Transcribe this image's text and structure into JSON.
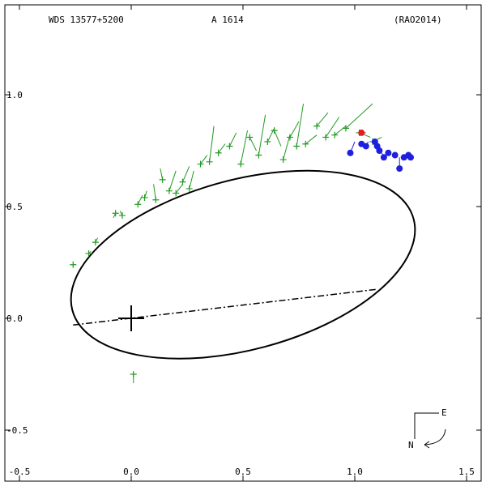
{
  "header": {
    "left": "WDS 13577+5200",
    "center": "A  1614",
    "right": "(RAO2014)"
  },
  "compass": {
    "east": "E",
    "north": "N"
  },
  "chart_data": {
    "type": "scatter",
    "xlim": [
      -0.5,
      1.5
    ],
    "ylim": [
      -0.5,
      1.0
    ],
    "x_ticks": [
      {
        "v": -0.5,
        "label": "-0.5"
      },
      {
        "v": 0.0,
        "label": "0.0"
      },
      {
        "v": 0.5,
        "label": "0.5"
      },
      {
        "v": 1.0,
        "label": "1.0"
      },
      {
        "v": 1.5,
        "label": "1.5"
      }
    ],
    "y_ticks": [
      {
        "v": 1.0,
        "label": "1.0"
      },
      {
        "v": 0.5,
        "label": "0.5"
      },
      {
        "v": 0.0,
        "label": "0.0"
      },
      {
        "v": -0.5,
        "label": "-0.5"
      }
    ],
    "grid": false,
    "orbit_ellipse": {
      "cx": 0.5,
      "cy": 0.24,
      "rx": 0.79,
      "ry": 0.38,
      "rotation_deg": -15
    },
    "node_line": [
      [
        -0.26,
        -0.03
      ],
      [
        1.1,
        0.13
      ]
    ],
    "primary_star": [
      0.0,
      0.0
    ],
    "colors": {
      "orbit": "#000000",
      "visual": "#229922",
      "speckle": "#1f1fe0",
      "latest": "#e02020"
    },
    "series": [
      {
        "marker": "plus",
        "color": "#229922",
        "points": [
          {
            "x": -0.26,
            "y": 0.24,
            "ox": -0.25,
            "oy": 0.24
          },
          {
            "x": -0.19,
            "y": 0.29,
            "ox": -0.18,
            "oy": 0.3
          },
          {
            "x": -0.16,
            "y": 0.34,
            "ox": -0.15,
            "oy": 0.36
          },
          {
            "x": -0.07,
            "y": 0.47,
            "ox": -0.08,
            "oy": 0.45
          },
          {
            "x": -0.04,
            "y": 0.46,
            "ox": -0.05,
            "oy": 0.48
          },
          {
            "x": 0.03,
            "y": 0.51,
            "ox": 0.05,
            "oy": 0.55
          },
          {
            "x": 0.06,
            "y": 0.54,
            "ox": 0.07,
            "oy": 0.57
          },
          {
            "x": 0.11,
            "y": 0.53,
            "ox": 0.1,
            "oy": 0.6
          },
          {
            "x": 0.14,
            "y": 0.62,
            "ox": 0.13,
            "oy": 0.67
          },
          {
            "x": 0.17,
            "y": 0.57,
            "ox": 0.2,
            "oy": 0.66
          },
          {
            "x": 0.2,
            "y": 0.56,
            "ox": 0.23,
            "oy": 0.6
          },
          {
            "x": 0.23,
            "y": 0.61,
            "ox": 0.26,
            "oy": 0.68
          },
          {
            "x": 0.26,
            "y": 0.58,
            "ox": 0.28,
            "oy": 0.66
          },
          {
            "x": 0.31,
            "y": 0.69,
            "ox": 0.34,
            "oy": 0.73
          },
          {
            "x": 0.35,
            "y": 0.7,
            "ox": 0.37,
            "oy": 0.86
          },
          {
            "x": 0.39,
            "y": 0.74,
            "ox": 0.42,
            "oy": 0.78
          },
          {
            "x": 0.44,
            "y": 0.77,
            "ox": 0.47,
            "oy": 0.83
          },
          {
            "x": 0.49,
            "y": 0.69,
            "ox": 0.52,
            "oy": 0.84
          },
          {
            "x": 0.53,
            "y": 0.81,
            "ox": 0.56,
            "oy": 0.75
          },
          {
            "x": 0.57,
            "y": 0.73,
            "ox": 0.6,
            "oy": 0.91
          },
          {
            "x": 0.61,
            "y": 0.79,
            "ox": 0.64,
            "oy": 0.85
          },
          {
            "x": 0.64,
            "y": 0.84,
            "ox": 0.67,
            "oy": 0.77
          },
          {
            "x": 0.68,
            "y": 0.71,
            "ox": 0.71,
            "oy": 0.82
          },
          {
            "x": 0.71,
            "y": 0.81,
            "ox": 0.75,
            "oy": 0.88
          },
          {
            "x": 0.74,
            "y": 0.77,
            "ox": 0.77,
            "oy": 0.96
          },
          {
            "x": 0.78,
            "y": 0.78,
            "ox": 0.83,
            "oy": 0.82
          },
          {
            "x": 0.83,
            "y": 0.86,
            "ox": 0.88,
            "oy": 0.92
          },
          {
            "x": 0.87,
            "y": 0.81,
            "ox": 0.93,
            "oy": 0.9
          },
          {
            "x": 0.91,
            "y": 0.82,
            "ox": 0.96,
            "oy": 0.86
          },
          {
            "x": 0.96,
            "y": 0.85,
            "ox": 1.08,
            "oy": 0.96
          },
          {
            "x": 1.02,
            "y": 0.83,
            "ox": 1.07,
            "oy": 0.81
          },
          {
            "x": 1.08,
            "y": 0.79,
            "ox": 1.12,
            "oy": 0.81
          },
          {
            "x": 0.01,
            "y": -0.25,
            "ox": 0.01,
            "oy": -0.29
          }
        ]
      },
      {
        "marker": "dot",
        "color": "#1f1fe0",
        "points": [
          {
            "x": 0.98,
            "y": 0.74,
            "ox": 1.0,
            "oy": 0.79
          },
          {
            "x": 1.03,
            "y": 0.78,
            "ox": 1.03,
            "oy": 0.78
          },
          {
            "x": 1.05,
            "y": 0.77,
            "ox": 1.06,
            "oy": 0.79
          },
          {
            "x": 1.09,
            "y": 0.79,
            "ox": 1.08,
            "oy": 0.8
          },
          {
            "x": 1.1,
            "y": 0.77,
            "ox": 1.1,
            "oy": 0.77
          },
          {
            "x": 1.11,
            "y": 0.75,
            "ox": 1.12,
            "oy": 0.76
          },
          {
            "x": 1.13,
            "y": 0.72,
            "ox": 1.12,
            "oy": 0.74
          },
          {
            "x": 1.15,
            "y": 0.74,
            "ox": 1.14,
            "oy": 0.75
          },
          {
            "x": 1.18,
            "y": 0.73,
            "ox": 1.18,
            "oy": 0.72
          },
          {
            "x": 1.2,
            "y": 0.67,
            "ox": 1.2,
            "oy": 0.72
          },
          {
            "x": 1.22,
            "y": 0.72,
            "ox": 1.22,
            "oy": 0.71
          },
          {
            "x": 1.24,
            "y": 0.73,
            "ox": 1.24,
            "oy": 0.71
          },
          {
            "x": 1.25,
            "y": 0.72,
            "ox": 1.25,
            "oy": 0.71
          }
        ]
      },
      {
        "marker": "dot",
        "color": "#e02020",
        "points": [
          {
            "x": 1.03,
            "y": 0.83,
            "ox": 1.05,
            "oy": 0.83
          }
        ]
      }
    ]
  }
}
